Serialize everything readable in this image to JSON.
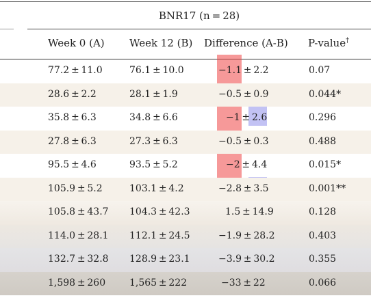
{
  "group_header": "BNR17 (n = 28)",
  "columns": [
    "Week 0 (A)",
    "Week 12 (B)",
    "Difference (A-B)",
    "P-value",
    "†"
  ],
  "rows": [
    {
      "a": "77.2 ± 11.0",
      "b": "76.1 ± 10.0",
      "d_mean": "−1.1",
      "d_sep": " ± ",
      "d_sd": "2.2",
      "p": "0.07"
    },
    {
      "a": "28.6 ± 2.2",
      "b": "28.1 ± 1.9",
      "d_mean": "−0.5",
      "d_sep": " ± ",
      "d_sd": "0.9",
      "p": "0.044*"
    },
    {
      "a": "35.8 ± 6.3",
      "b": "34.8 ± 6.6",
      "d_mean": "−1",
      "d_sep": " ± ",
      "d_sd": "2.6",
      "p": "0.296"
    },
    {
      "a": "27.8 ± 6.3",
      "b": "27.3 ± 6.3",
      "d_mean": "−0.5",
      "d_sep": " ± ",
      "d_sd": "0.3",
      "p": "0.488"
    },
    {
      "a": "95.5 ± 4.6",
      "b": "93.5 ± 5.2",
      "d_mean": "−2",
      "d_sep": " ± ",
      "d_sd": "4.4",
      "p": "0.015*"
    },
    {
      "a": "105.9 ± 5.2",
      "b": "103.1 ± 4.2",
      "d_mean": "−2.8",
      "d_sep": " ± ",
      "d_sd": "3.5",
      "p": "0.001**"
    },
    {
      "a": "105.8 ± 43.7",
      "b": "104.3 ± 42.3",
      "d_mean": "1.5",
      "d_sep": " ± ",
      "d_sd": "14.9",
      "p": "0.128"
    },
    {
      "a": "114.0 ± 28.1",
      "b": "112.1 ± 24.5",
      "d_mean": "−1.9",
      "d_sep": " ± ",
      "d_sd": "28.2",
      "p": "0.403"
    },
    {
      "a": "132.7 ± 32.8",
      "b": "128.9 ± 23.1",
      "d_mean": "−3.9",
      "d_sep": " ± ",
      "d_sd": "30.2",
      "p": "0.355"
    },
    {
      "a": "1,598 ± 260",
      "b": "1,565 ± 222",
      "d_mean": "−33",
      "d_sep": " ± ",
      "d_sd": "22",
      "p": "0.066"
    }
  ],
  "colors": {
    "red_highlight": "#ee4646",
    "blue_highlight": "#7878e6",
    "row_tint": "#f6f1e9"
  }
}
